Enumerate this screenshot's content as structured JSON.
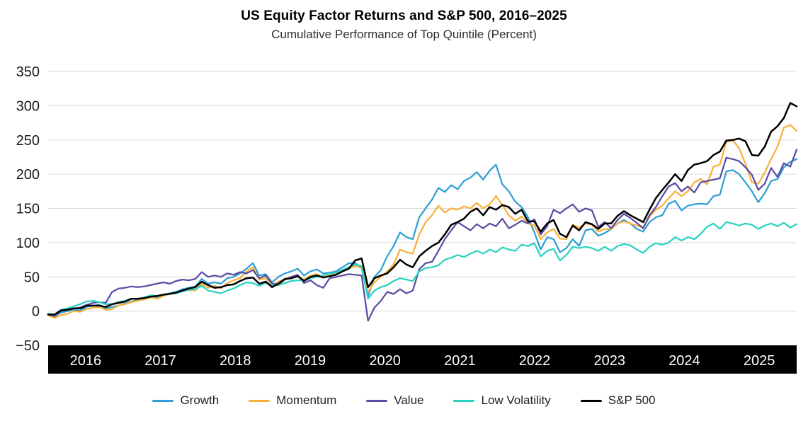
{
  "title": "US Equity Factor Returns and S&P 500, 2016–2025",
  "subtitle": "Cumulative Performance of Top Quintile (Percent)",
  "colors": {
    "growth": "#2f9fd7",
    "momentum": "#f9b13c",
    "value": "#5b4da5",
    "low_volatility": "#29d3c0",
    "sp500": "#000000",
    "gridline": "#d9d9d9",
    "axis_band": "#000000",
    "axis_band_text": "#ffffff",
    "tick_text": "#1a1a1a"
  },
  "chart_data": {
    "type": "line",
    "x_unit": "month",
    "x_range": [
      "2016-01",
      "2025-10"
    ],
    "x_tick_labels": [
      "2016",
      "2017",
      "2018",
      "2019",
      "2020",
      "2021",
      "2022",
      "2023",
      "2024",
      "2025"
    ],
    "y_ticks": [
      350,
      300,
      250,
      200,
      150,
      100,
      50,
      0,
      -50
    ],
    "y_axis": {
      "min": -50,
      "max": 350
    },
    "grid": true,
    "legend_position": "bottom",
    "series": [
      {
        "name": "Growth",
        "color": "#2f9fd7",
        "values": [
          -5,
          -8,
          -2,
          0,
          2,
          1,
          6,
          8,
          9,
          4,
          6,
          8,
          11,
          14,
          16,
          18,
          22,
          20,
          24,
          26,
          28,
          32,
          34,
          36,
          47,
          40,
          42,
          40,
          48,
          50,
          55,
          62,
          70,
          52,
          54,
          42,
          50,
          55,
          58,
          62,
          52,
          58,
          61,
          55,
          56,
          58,
          64,
          70,
          70,
          64,
          21,
          50,
          60,
          80,
          95,
          115,
          108,
          105,
          137,
          150,
          163,
          180,
          174,
          184,
          178,
          190,
          195,
          203,
          192,
          205,
          214,
          185,
          175,
          160,
          152,
          137,
          115,
          90,
          108,
          105,
          86,
          92,
          105,
          95,
          118,
          120,
          110,
          114,
          120,
          128,
          133,
          128,
          120,
          116,
          130,
          137,
          140,
          157,
          161,
          147,
          154,
          156,
          157,
          156,
          168,
          170,
          204,
          206,
          200,
          188,
          175,
          159,
          172,
          190,
          193,
          210,
          218,
          222
        ]
      },
      {
        "name": "Momentum",
        "color": "#f9b13c",
        "values": [
          -6,
          -10,
          -6,
          -4,
          0,
          -1,
          3,
          5,
          6,
          2,
          3,
          8,
          10,
          13,
          15,
          17,
          20,
          18,
          22,
          25,
          26,
          30,
          31,
          30,
          40,
          34,
          37,
          33,
          41,
          45,
          48,
          58,
          64,
          46,
          48,
          38,
          43,
          47,
          49,
          51,
          46,
          52,
          54,
          50,
          52,
          54,
          58,
          62,
          66,
          63,
          28,
          42,
          50,
          58,
          68,
          90,
          86,
          84,
          112,
          130,
          140,
          154,
          144,
          150,
          148,
          153,
          150,
          158,
          150,
          156,
          168,
          155,
          140,
          132,
          138,
          128,
          125,
          105,
          115,
          120,
          106,
          105,
          126,
          122,
          128,
          126,
          116,
          120,
          120,
          128,
          131,
          128,
          125,
          122,
          138,
          148,
          154,
          165,
          175,
          168,
          175,
          188,
          193,
          185,
          211,
          214,
          247,
          250,
          238,
          215,
          188,
          186,
          202,
          222,
          240,
          268,
          272,
          263
        ]
      },
      {
        "name": "Value",
        "color": "#5b4da5",
        "values": [
          -5,
          -7,
          0,
          3,
          4,
          5,
          9,
          12,
          13,
          12,
          28,
          33,
          34,
          36,
          35,
          36,
          38,
          40,
          42,
          40,
          44,
          46,
          45,
          47,
          57,
          50,
          52,
          50,
          55,
          53,
          57,
          55,
          60,
          48,
          52,
          40,
          39,
          46,
          50,
          53,
          41,
          45,
          38,
          34,
          48,
          50,
          52,
          54,
          53,
          52,
          -14,
          5,
          15,
          28,
          25,
          32,
          26,
          30,
          61,
          70,
          72,
          88,
          105,
          118,
          130,
          124,
          118,
          127,
          121,
          128,
          124,
          135,
          121,
          126,
          132,
          128,
          134,
          112,
          124,
          148,
          143,
          150,
          156,
          145,
          150,
          147,
          123,
          130,
          121,
          133,
          142,
          136,
          129,
          121,
          140,
          152,
          168,
          182,
          187,
          175,
          182,
          173,
          188,
          190,
          192,
          194,
          224,
          222,
          219,
          210,
          199,
          177,
          186,
          209,
          196,
          216,
          211,
          236
        ]
      },
      {
        "name": "Low Volatility",
        "color": "#29d3c0",
        "values": [
          -4,
          -5,
          2,
          4,
          7,
          10,
          14,
          15,
          13,
          10,
          10,
          13,
          15,
          18,
          18,
          20,
          23,
          22,
          24,
          26,
          26,
          29,
          31,
          32,
          37,
          30,
          28,
          26,
          30,
          33,
          38,
          42,
          41,
          37,
          41,
          38,
          38,
          41,
          44,
          45,
          45,
          48,
          50,
          52,
          55,
          56,
          60,
          64,
          68,
          66,
          18,
          30,
          35,
          38,
          44,
          48,
          46,
          44,
          58,
          63,
          64,
          67,
          75,
          78,
          82,
          79,
          84,
          88,
          84,
          90,
          86,
          93,
          90,
          88,
          97,
          95,
          99,
          80,
          88,
          91,
          74,
          82,
          94,
          92,
          94,
          92,
          88,
          94,
          88,
          95,
          98,
          96,
          90,
          85,
          94,
          99,
          97,
          100,
          108,
          103,
          108,
          105,
          113,
          123,
          128,
          120,
          130,
          128,
          125,
          128,
          126,
          120,
          125,
          128,
          124,
          129,
          122,
          127
        ]
      },
      {
        "name": "S&P 500",
        "color": "#000000",
        "values": [
          -5,
          -5,
          1,
          2,
          4,
          4,
          8,
          8,
          8,
          6,
          10,
          12,
          14,
          18,
          18,
          19,
          21,
          22,
          24,
          25,
          27,
          30,
          33,
          35,
          43,
          38,
          34,
          35,
          38,
          39,
          44,
          48,
          49,
          40,
          43,
          35,
          40,
          47,
          48,
          51,
          44,
          50,
          52,
          49,
          51,
          53,
          58,
          62,
          74,
          77,
          35,
          48,
          52,
          55,
          64,
          75,
          68,
          64,
          80,
          88,
          95,
          100,
          112,
          126,
          130,
          135,
          145,
          150,
          140,
          152,
          148,
          155,
          152,
          142,
          148,
          131,
          131,
          116,
          128,
          133,
          113,
          108,
          125,
          118,
          130,
          127,
          120,
          128,
          128,
          139,
          146,
          140,
          135,
          130,
          148,
          165,
          177,
          188,
          200,
          190,
          206,
          214,
          216,
          219,
          228,
          233,
          249,
          250,
          252,
          248,
          228,
          227,
          240,
          262,
          270,
          282,
          304,
          299
        ]
      }
    ]
  }
}
